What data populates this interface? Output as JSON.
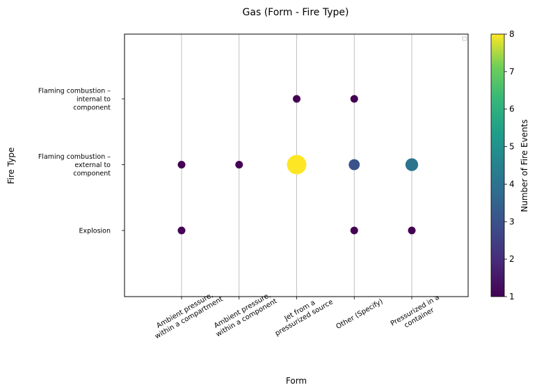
{
  "chart_data": {
    "type": "scatter",
    "title": "Gas (Form - Fire Type)",
    "xlabel": "Form",
    "ylabel": "Fire Type",
    "x_categories": [
      [
        "Ambient pressure,",
        "within a compartment"
      ],
      [
        "Ambient pressure,",
        "within a component"
      ],
      [
        "Jet from a",
        "pressurized source"
      ],
      [
        "Other (Specify)"
      ],
      [
        "Pressurized in a",
        "container"
      ]
    ],
    "y_categories": [
      [
        "Explosion"
      ],
      [
        "Flaming combustion –",
        "external to",
        "component"
      ],
      [
        "Flaming combustion –",
        "internal to",
        "component"
      ]
    ],
    "points": [
      {
        "x": 0,
        "y": 0,
        "count": 1
      },
      {
        "x": 0,
        "y": 1,
        "count": 1
      },
      {
        "x": 1,
        "y": 1,
        "count": 1
      },
      {
        "x": 2,
        "y": 1,
        "count": 8
      },
      {
        "x": 2,
        "y": 2,
        "count": 1
      },
      {
        "x": 3,
        "y": 0,
        "count": 1
      },
      {
        "x": 3,
        "y": 1,
        "count": 3
      },
      {
        "x": 3,
        "y": 2,
        "count": 1
      },
      {
        "x": 4,
        "y": 0,
        "count": 1
      },
      {
        "x": 4,
        "y": 1,
        "count": 4
      }
    ],
    "colorbar": {
      "label": "Number of Fire Events",
      "min": 1,
      "max": 8,
      "ticks": [
        "1",
        "2",
        "3",
        "4",
        "5",
        "6",
        "7",
        "8"
      ],
      "colormap": "viridis"
    },
    "grid": "vertical",
    "legend": "top-right (empty)"
  }
}
